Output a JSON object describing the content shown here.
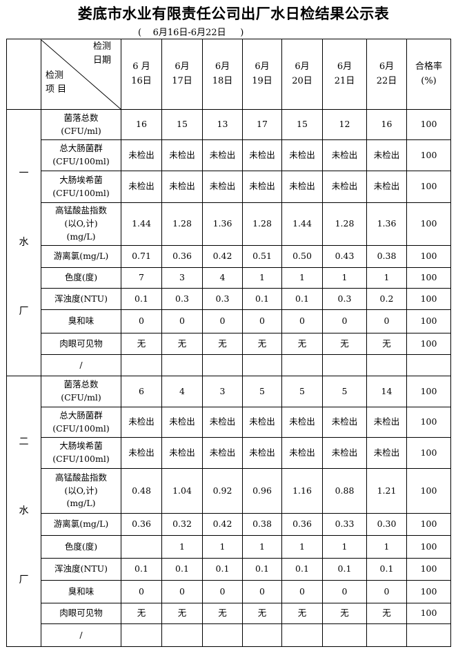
{
  "title": "娄底市水业有限责任公司出厂水日检结果公示表",
  "subtitle": "(    6月16日-6月22日     )",
  "header": {
    "corner_top": [
      "检测",
      "日期"
    ],
    "corner_bottom": [
      "检测",
      "项 目"
    ],
    "dates": [
      [
        "6 月",
        "16日"
      ],
      [
        "6月",
        "17日"
      ],
      [
        "6月",
        "18日"
      ],
      [
        "6月",
        "19日"
      ],
      [
        "6月",
        "20日"
      ],
      [
        "6月",
        "21日"
      ],
      [
        "6月",
        "22日"
      ]
    ],
    "rate": [
      "合格率",
      "(%)"
    ]
  },
  "sections": [
    {
      "label": [
        "一",
        "水",
        "厂"
      ],
      "rows": [
        {
          "item": [
            "菌落总数",
            "(CFU/ml)"
          ],
          "values": [
            "16",
            "15",
            "13",
            "17",
            "15",
            "12",
            "16"
          ],
          "rate": "100"
        },
        {
          "item": [
            "总大肠菌群",
            "(CFU/100ml)"
          ],
          "values": [
            "未检出",
            "未检出",
            "未检出",
            "未检出",
            "未检出",
            "未检出",
            "未检出"
          ],
          "rate": "100"
        },
        {
          "item": [
            "大肠埃希菌",
            "(CFU/100ml)"
          ],
          "values": [
            "未检出",
            "未检出",
            "未检出",
            "未检出",
            "未检出",
            "未检出",
            "未检出"
          ],
          "rate": "100"
        },
        {
          "item": [
            "高锰酸盐指数",
            "(以O,计)",
            "(mg/L)"
          ],
          "values": [
            "1.44",
            "1.28",
            "1.36",
            "1.28",
            "1.44",
            "1.28",
            "1.36"
          ],
          "rate": "100"
        },
        {
          "item": [
            "游离氯(mg/L)"
          ],
          "values": [
            "0.71",
            "0.36",
            "0.42",
            "0.51",
            "0.50",
            "0.43",
            "0.38"
          ],
          "rate": "100"
        },
        {
          "item": [
            "色度(度)"
          ],
          "values": [
            "7",
            "3",
            "4",
            "1",
            "1",
            "1",
            "1"
          ],
          "rate": "100"
        },
        {
          "item": [
            "浑浊度(NTU)"
          ],
          "values": [
            "0.1",
            "0.3",
            "0.3",
            "0.1",
            "0.1",
            "0.3",
            "0.2"
          ],
          "rate": "100"
        },
        {
          "item": [
            "臭和味"
          ],
          "values": [
            "0",
            "0",
            "0",
            "0",
            "0",
            "0",
            "0"
          ],
          "rate": "100"
        },
        {
          "item": [
            "肉眼可见物"
          ],
          "values": [
            "无",
            "无",
            "无",
            "无",
            "无",
            "无",
            "无"
          ],
          "rate": "100"
        },
        {
          "item": [
            "/"
          ],
          "values": [
            "",
            "",
            "",
            "",
            "",
            "",
            ""
          ],
          "rate": ""
        }
      ]
    },
    {
      "label": [
        "二",
        "水",
        "厂"
      ],
      "rows": [
        {
          "item": [
            "菌落总数",
            "(CFU/ml)"
          ],
          "values": [
            "6",
            "4",
            "3",
            "5",
            "5",
            "5",
            "14"
          ],
          "rate": "100"
        },
        {
          "item": [
            "总大肠菌群",
            "(CFU/100ml)"
          ],
          "values": [
            "未检出",
            "未检出",
            "未检出",
            "未检出",
            "未检出",
            "未检出",
            "未检出"
          ],
          "rate": "100"
        },
        {
          "item": [
            "大肠埃希菌",
            "(CFU/100ml)"
          ],
          "values": [
            "未检出",
            "未检出",
            "未检出",
            "未检出",
            "未检出",
            "未检出",
            "未检出"
          ],
          "rate": "100"
        },
        {
          "item": [
            "高锰酸盐指数",
            "(以O,计)",
            "(mg/L)"
          ],
          "values": [
            "0.48",
            "1.04",
            "0.92",
            "0.96",
            "1.16",
            "0.88",
            "1.21"
          ],
          "rate": "100"
        },
        {
          "item": [
            "游离氯(mg/L)"
          ],
          "values": [
            "0.36",
            "0.32",
            "0.42",
            "0.38",
            "0.36",
            "0.33",
            "0.30"
          ],
          "rate": "100"
        },
        {
          "item": [
            "色度(度)"
          ],
          "values": [
            "",
            "1",
            "1",
            "1",
            "1",
            "1",
            "1"
          ],
          "rate": "100"
        },
        {
          "item": [
            "浑浊度(NTU)"
          ],
          "values": [
            "0.1",
            "0.1",
            "0.1",
            "0.1",
            "0.1",
            "0.1",
            "0.1"
          ],
          "rate": "100"
        },
        {
          "item": [
            "臭和味"
          ],
          "values": [
            "0",
            "0",
            "0",
            "0",
            "0",
            "0",
            "0"
          ],
          "rate": "100"
        },
        {
          "item": [
            "肉眼可见物"
          ],
          "values": [
            "无",
            "无",
            "无",
            "无",
            "无",
            "无",
            "无"
          ],
          "rate": "100"
        },
        {
          "item": [
            "/"
          ],
          "values": [
            "",
            "",
            "",
            "",
            "",
            "",
            ""
          ],
          "rate": ""
        }
      ]
    }
  ]
}
